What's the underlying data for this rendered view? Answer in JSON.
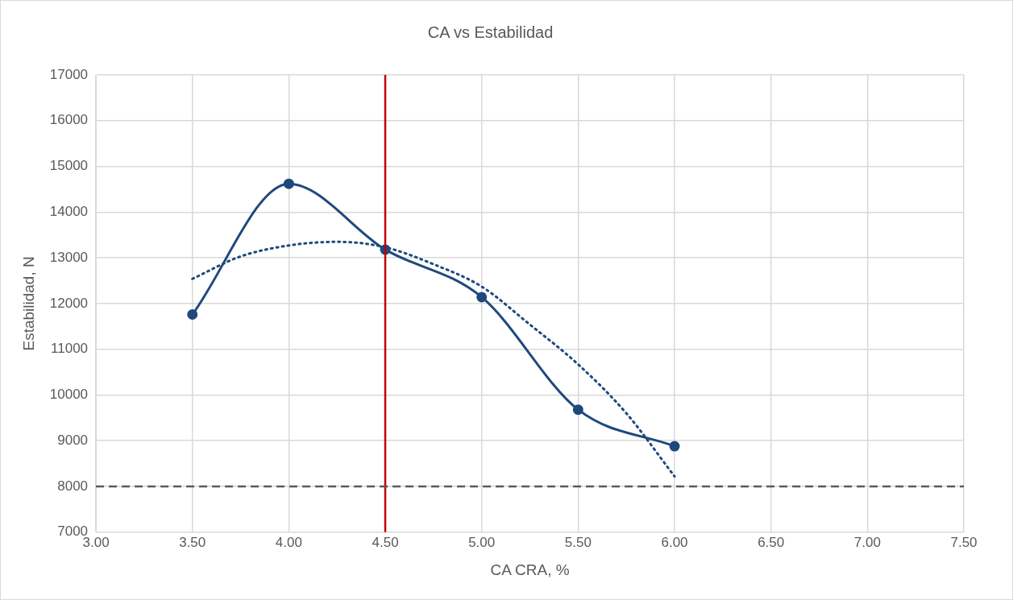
{
  "chart_data": {
    "type": "line",
    "title": "CA vs Estabilidad",
    "xlabel": "CA CRA, %",
    "ylabel": "Estabilidad, N",
    "xlim": [
      3,
      7.5
    ],
    "xticks": [
      {
        "value": 3,
        "label": "3.00"
      },
      {
        "value": 3.5,
        "label": "3.50"
      },
      {
        "value": 4,
        "label": "4.00"
      },
      {
        "value": 4.5,
        "label": "4.50"
      },
      {
        "value": 5,
        "label": "5.00"
      },
      {
        "value": 5.5,
        "label": "5.50"
      },
      {
        "value": 6,
        "label": "6.00"
      },
      {
        "value": 6.5,
        "label": "6.50"
      },
      {
        "value": 7,
        "label": "7.00"
      },
      {
        "value": 7.5,
        "label": "7.50"
      }
    ],
    "ylim": [
      7000,
      17000
    ],
    "yticks": [
      7000,
      8000,
      9000,
      10000,
      11000,
      12000,
      13000,
      14000,
      15000,
      16000,
      17000
    ],
    "grid": true,
    "legend": false,
    "series": [
      {
        "type": "line",
        "color": "#1f497d",
        "marker": "circle",
        "line_style": "solid",
        "x": [
          3.5,
          4,
          4.5,
          5,
          5.5,
          6
        ],
        "values": [
          11760,
          14620,
          13180,
          12140,
          9680,
          8880
        ]
      },
      {
        "type": "line",
        "color": "#1f497d",
        "marker": "none",
        "line_style": "dotted",
        "x": [
          3.5,
          3.75,
          4,
          4.25,
          4.5,
          4.75,
          5,
          5.25,
          5.5,
          5.75,
          6
        ],
        "values": [
          12540,
          13030,
          13270,
          13350,
          13230,
          12860,
          12370,
          11540,
          10670,
          9600,
          8220
        ]
      }
    ],
    "ref_lines": [
      {
        "axis": "x",
        "value": 4.5,
        "color": "#c00000",
        "line_style": "solid"
      },
      {
        "axis": "y",
        "value": 8000,
        "color": "#595959",
        "line_style": "dashed"
      }
    ]
  }
}
